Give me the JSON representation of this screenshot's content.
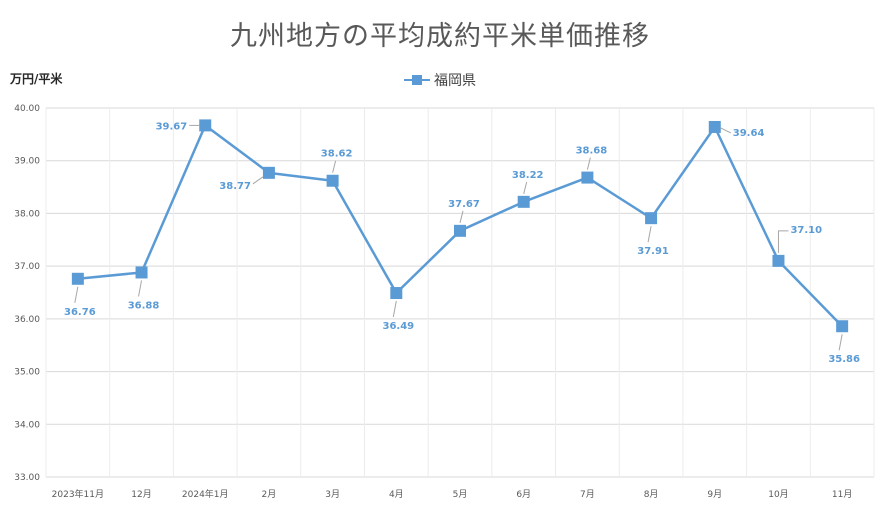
{
  "chart_data": {
    "type": "line",
    "title": "九州地方の平均成約平米単価推移",
    "ylabel": "万円/平米",
    "xlabel": "",
    "ylim": [
      33,
      40
    ],
    "yticks": [
      "33.00",
      "34.00",
      "35.00",
      "36.00",
      "37.00",
      "38.00",
      "39.00",
      "40.00"
    ],
    "grid": true,
    "legend_position": "top-center",
    "categories": [
      "2023年11月",
      "12月",
      "2024年1月",
      "2月",
      "3月",
      "4月",
      "5月",
      "6月",
      "7月",
      "8月",
      "9月",
      "10月",
      "11月"
    ],
    "series": [
      {
        "name": "福岡県",
        "color": "#5b9bd5",
        "values": [
          36.76,
          36.88,
          39.67,
          38.77,
          38.62,
          36.49,
          37.67,
          38.22,
          38.68,
          37.91,
          39.64,
          37.1,
          35.86
        ],
        "labels": [
          "36.76",
          "36.88",
          "39.67",
          "38.77",
          "38.62",
          "36.49",
          "37.67",
          "38.22",
          "38.68",
          "37.91",
          "39.64",
          "37.10",
          "35.86"
        ]
      }
    ]
  }
}
